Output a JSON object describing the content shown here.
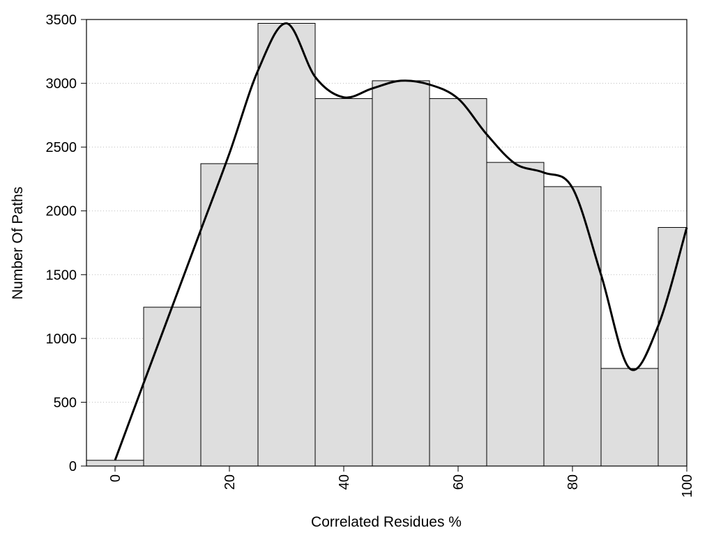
{
  "chart_data": {
    "type": "bar",
    "title": "",
    "xlabel": "Correlated Residues %",
    "ylabel": "Number Of Paths",
    "xlim": [
      -5,
      100
    ],
    "ylim": [
      0,
      3500
    ],
    "grid": "horizontal dotted",
    "bins": [
      {
        "x0": -5,
        "x1": 5,
        "value": 45
      },
      {
        "x0": 5,
        "x1": 15,
        "value": 1245
      },
      {
        "x0": 15,
        "x1": 25,
        "value": 2370
      },
      {
        "x0": 25,
        "x1": 35,
        "value": 3470
      },
      {
        "x0": 35,
        "x1": 45,
        "value": 2880
      },
      {
        "x0": 45,
        "x1": 55,
        "value": 3020
      },
      {
        "x0": 55,
        "x1": 65,
        "value": 2880
      },
      {
        "x0": 65,
        "x1": 75,
        "value": 2380
      },
      {
        "x0": 75,
        "x1": 85,
        "value": 2190
      },
      {
        "x0": 85,
        "x1": 95,
        "value": 765
      },
      {
        "x0": 95,
        "x1": 100,
        "value": 1870
      }
    ],
    "x_ticks": [
      {
        "value": 0,
        "label": "0"
      },
      {
        "value": 20,
        "label": "20"
      },
      {
        "value": 40,
        "label": "40"
      },
      {
        "value": 60,
        "label": "60"
      },
      {
        "value": 80,
        "label": "80"
      },
      {
        "value": 100,
        "label": "100"
      }
    ],
    "y_ticks": [
      {
        "value": 0,
        "label": "0"
      },
      {
        "value": 500,
        "label": "500"
      },
      {
        "value": 1000,
        "label": "1000"
      },
      {
        "value": 1500,
        "label": "1500"
      },
      {
        "value": 2000,
        "label": "2000"
      },
      {
        "value": 2500,
        "label": "2500"
      },
      {
        "value": 3000,
        "label": "3000"
      },
      {
        "value": 3500,
        "label": "3500"
      }
    ],
    "curve": {
      "x": [
        0,
        5,
        10,
        15,
        20,
        25,
        30,
        35,
        40,
        45,
        50,
        55,
        60,
        65,
        70,
        75,
        80,
        85,
        90,
        95,
        100
      ],
      "y": [
        45,
        650,
        1250,
        1850,
        2450,
        3100,
        3470,
        3050,
        2890,
        2960,
        3020,
        2990,
        2880,
        2600,
        2370,
        2300,
        2180,
        1500,
        765,
        1100,
        1870
      ]
    },
    "bar_fill": "#dedede",
    "bar_stroke": "#000000",
    "curve_color": "#000000"
  }
}
